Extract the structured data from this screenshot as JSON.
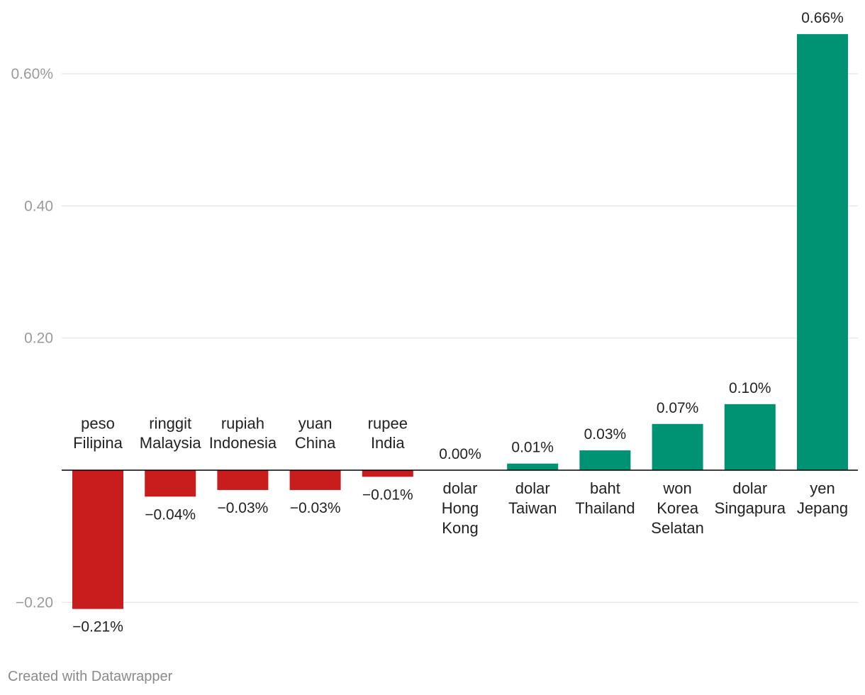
{
  "chart_data": {
    "type": "bar",
    "categories": [
      [
        "peso",
        "Filipina"
      ],
      [
        "ringgit",
        "Malaysia"
      ],
      [
        "rupiah",
        "Indonesia"
      ],
      [
        "yuan",
        "China"
      ],
      [
        "rupee",
        "India"
      ],
      [
        "dolar",
        "Hong",
        "Kong"
      ],
      [
        "dolar",
        "Taiwan"
      ],
      [
        "baht",
        "Thailand"
      ],
      [
        "won",
        "Korea",
        "Selatan"
      ],
      [
        "dolar",
        "Singapura"
      ],
      [
        "yen",
        "Jepang"
      ]
    ],
    "values": [
      -0.21,
      -0.04,
      -0.03,
      -0.03,
      -0.01,
      0.0,
      0.01,
      0.03,
      0.07,
      0.1,
      0.66
    ],
    "value_labels": [
      "−0.21%",
      "−0.04%",
      "−0.03%",
      "−0.03%",
      "−0.01%",
      "0.00%",
      "0.01%",
      "0.03%",
      "0.07%",
      "0.10%",
      "0.66%"
    ],
    "y_ticks": [
      {
        "value": 0.6,
        "label": "0.60%"
      },
      {
        "value": 0.4,
        "label": "0.40"
      },
      {
        "value": 0.2,
        "label": "0.20"
      },
      {
        "value": -0.2,
        "label": "−0.20"
      }
    ],
    "ylim": [
      -0.25,
      0.7
    ],
    "grid": true,
    "legend": "none",
    "colors": {
      "positive": "#009373",
      "negative": "#c71e1d",
      "grid": "#e2e2e2",
      "zero_line": "#000000"
    }
  },
  "footer": {
    "credit": "Created with Datawrapper"
  }
}
